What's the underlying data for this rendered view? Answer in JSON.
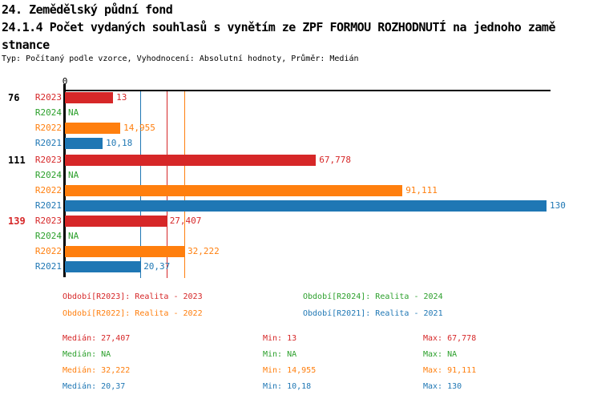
{
  "header": {
    "title_line1": "24. Zemědělský půdní fond",
    "title_line2": "24.1.4 Počet vydaných souhlasů s vynětím ze ZPF FORMOU ROZHODNUTÍ na jednoho zamě",
    "title_line3": "stnance",
    "subtitle": "Typ: Počítaný podle vzorce, Vyhodnocení: Absolutní hodnoty, Průměr: Medián"
  },
  "series": [
    {
      "id": "R2023",
      "label": "R2023",
      "color": "#d62728",
      "legend": "Období[R2023]: Realita - 2023"
    },
    {
      "id": "R2024",
      "label": "R2024",
      "color": "#2ca02c",
      "legend": "Období[R2024]: Realita - 2024"
    },
    {
      "id": "R2022",
      "label": "R2022",
      "color": "#ff7f0e",
      "legend": "Období[R2022]: Realita - 2022"
    },
    {
      "id": "R2021",
      "label": "R2021",
      "color": "#1f77b4",
      "legend": "Období[R2021]: Realita - 2021"
    }
  ],
  "chart_data": {
    "type": "bar",
    "orientation": "horizontal",
    "xlim": [
      0,
      131
    ],
    "x_ticks": [
      {
        "value": 0,
        "label": "0"
      }
    ],
    "grid": false,
    "series_display_order": [
      "R2023",
      "R2024",
      "R2022",
      "R2021"
    ],
    "groups": [
      {
        "label": "76",
        "label_color": "#000000",
        "bars": [
          {
            "series": "R2023",
            "value": 13,
            "value_label": "13"
          },
          {
            "series": "R2024",
            "value": null,
            "value_label": "NA"
          },
          {
            "series": "R2022",
            "value": 14.955,
            "value_label": "14,955"
          },
          {
            "series": "R2021",
            "value": 10.18,
            "value_label": "10,18"
          }
        ]
      },
      {
        "label": "111",
        "label_color": "#000000",
        "bars": [
          {
            "series": "R2023",
            "value": 67.778,
            "value_label": "67,778"
          },
          {
            "series": "R2024",
            "value": null,
            "value_label": "NA"
          },
          {
            "series": "R2022",
            "value": 91.111,
            "value_label": "91,111"
          },
          {
            "series": "R2021",
            "value": 130,
            "value_label": "130"
          }
        ]
      },
      {
        "label": "139",
        "label_color": "#d62728",
        "bars": [
          {
            "series": "R2023",
            "value": 27.407,
            "value_label": "27,407"
          },
          {
            "series": "R2024",
            "value": null,
            "value_label": "NA"
          },
          {
            "series": "R2022",
            "value": 32.222,
            "value_label": "32,222"
          },
          {
            "series": "R2021",
            "value": 20.37,
            "value_label": "20,37"
          }
        ]
      }
    ],
    "median_lines": [
      {
        "series": "R2023",
        "value": 27.407
      },
      {
        "series": "R2022",
        "value": 32.222
      },
      {
        "series": "R2021",
        "value": 20.37
      }
    ]
  },
  "stats": {
    "rows": [
      {
        "series": "R2023",
        "median": "Medián: 27,407",
        "min": "Min: 13",
        "max": "Max: 67,778"
      },
      {
        "series": "R2024",
        "median": "Medián: NA",
        "min": "Min: NA",
        "max": "Max: NA"
      },
      {
        "series": "R2022",
        "median": "Medián: 32,222",
        "min": "Min: 14,955",
        "max": "Max: 91,111"
      },
      {
        "series": "R2021",
        "median": "Medián: 20,37",
        "min": "Min: 10,18",
        "max": "Max: 130"
      }
    ]
  }
}
